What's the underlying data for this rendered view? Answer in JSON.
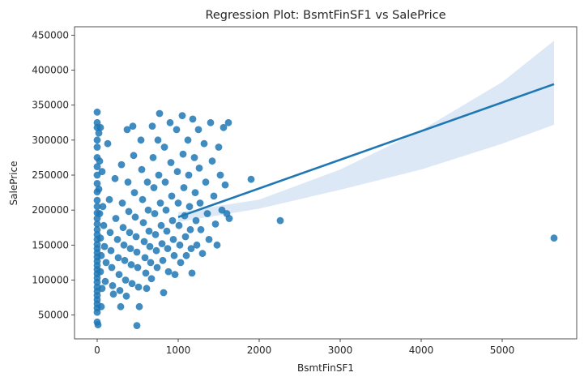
{
  "chart_data": {
    "type": "scatter",
    "title": "Regression Plot: BsmtFinSF1 vs SalePrice",
    "xlabel": "BsmtFinSF1",
    "ylabel": "SalePrice",
    "xlim": [
      -280,
      5920
    ],
    "ylim": [
      16000,
      462000
    ],
    "x_ticks": [
      0,
      1000,
      2000,
      3000,
      4000,
      5000
    ],
    "y_ticks": [
      50000,
      100000,
      150000,
      200000,
      250000,
      300000,
      350000,
      400000,
      450000
    ],
    "grid": false,
    "legend": "none",
    "point_color": "#1f77b4",
    "band_color": "#c9dbef",
    "regression": {
      "line": [
        [
          1000,
          190000
        ],
        [
          5640,
          380000
        ]
      ],
      "band_lower": [
        [
          1000,
          183000
        ],
        [
          2000,
          202000
        ],
        [
          3000,
          229000
        ],
        [
          4000,
          258000
        ],
        [
          5000,
          295000
        ],
        [
          5640,
          322000
        ]
      ],
      "band_upper": [
        [
          1000,
          197000
        ],
        [
          2000,
          215000
        ],
        [
          3000,
          258000
        ],
        [
          4000,
          314000
        ],
        [
          5000,
          383000
        ],
        [
          5640,
          442000
        ]
      ]
    },
    "points": [
      [
        0,
        340000
      ],
      [
        0,
        325000
      ],
      [
        0,
        318000
      ],
      [
        0,
        300000
      ],
      [
        0,
        290000
      ],
      [
        0,
        275000
      ],
      [
        0,
        262000
      ],
      [
        0,
        250000
      ],
      [
        0,
        238000
      ],
      [
        0,
        226000
      ],
      [
        0,
        214000
      ],
      [
        0,
        205000
      ],
      [
        0,
        196000
      ],
      [
        0,
        188000
      ],
      [
        0,
        180000
      ],
      [
        0,
        172000
      ],
      [
        0,
        165000
      ],
      [
        0,
        158000
      ],
      [
        0,
        151000
      ],
      [
        0,
        145000
      ],
      [
        0,
        139000
      ],
      [
        0,
        133000
      ],
      [
        0,
        127000
      ],
      [
        0,
        121000
      ],
      [
        0,
        115000
      ],
      [
        0,
        109000
      ],
      [
        0,
        103000
      ],
      [
        0,
        97000
      ],
      [
        0,
        90000
      ],
      [
        0,
        84000
      ],
      [
        0,
        78000
      ],
      [
        0,
        72000
      ],
      [
        0,
        66000
      ],
      [
        0,
        60000
      ],
      [
        0,
        54000
      ],
      [
        0,
        40000
      ],
      [
        10,
        36000
      ],
      [
        20,
        310000
      ],
      [
        30,
        270000
      ],
      [
        20,
        230000
      ],
      [
        30,
        195000
      ],
      [
        40,
        160000
      ],
      [
        50,
        135000
      ],
      [
        40,
        112000
      ],
      [
        60,
        88000
      ],
      [
        50,
        62000
      ],
      [
        40,
        318000
      ],
      [
        60,
        255000
      ],
      [
        70,
        205000
      ],
      [
        80,
        178000
      ],
      [
        90,
        148000
      ],
      [
        110,
        125000
      ],
      [
        100,
        98000
      ],
      [
        130,
        295000
      ],
      [
        150,
        215000
      ],
      [
        160,
        168000
      ],
      [
        170,
        142000
      ],
      [
        180,
        118000
      ],
      [
        190,
        92000
      ],
      [
        200,
        80000
      ],
      [
        220,
        245000
      ],
      [
        230,
        188000
      ],
      [
        250,
        158000
      ],
      [
        260,
        132000
      ],
      [
        270,
        108000
      ],
      [
        280,
        85000
      ],
      [
        290,
        62000
      ],
      [
        300,
        265000
      ],
      [
        310,
        210000
      ],
      [
        320,
        175000
      ],
      [
        330,
        150000
      ],
      [
        340,
        128000
      ],
      [
        350,
        100000
      ],
      [
        360,
        77000
      ],
      [
        370,
        315000
      ],
      [
        380,
        240000
      ],
      [
        390,
        198000
      ],
      [
        400,
        168000
      ],
      [
        410,
        145000
      ],
      [
        420,
        122000
      ],
      [
        430,
        95000
      ],
      [
        440,
        320000
      ],
      [
        450,
        278000
      ],
      [
        460,
        225000
      ],
      [
        470,
        190000
      ],
      [
        480,
        162000
      ],
      [
        490,
        140000
      ],
      [
        500,
        118000
      ],
      [
        510,
        90000
      ],
      [
        520,
        62000
      ],
      [
        490,
        35000
      ],
      [
        540,
        300000
      ],
      [
        550,
        258000
      ],
      [
        560,
        215000
      ],
      [
        570,
        182000
      ],
      [
        580,
        155000
      ],
      [
        590,
        132000
      ],
      [
        600,
        110000
      ],
      [
        610,
        88000
      ],
      [
        620,
        240000
      ],
      [
        630,
        200000
      ],
      [
        640,
        170000
      ],
      [
        650,
        148000
      ],
      [
        660,
        125000
      ],
      [
        670,
        102000
      ],
      [
        680,
        320000
      ],
      [
        690,
        275000
      ],
      [
        700,
        232000
      ],
      [
        710,
        195000
      ],
      [
        720,
        165000
      ],
      [
        730,
        142000
      ],
      [
        740,
        118000
      ],
      [
        750,
        300000
      ],
      [
        760,
        250000
      ],
      [
        770,
        338000
      ],
      [
        780,
        210000
      ],
      [
        790,
        178000
      ],
      [
        800,
        152000
      ],
      [
        810,
        128000
      ],
      [
        820,
        82000
      ],
      [
        830,
        290000
      ],
      [
        840,
        240000
      ],
      [
        850,
        200000
      ],
      [
        860,
        170000
      ],
      [
        870,
        145000
      ],
      [
        880,
        112000
      ],
      [
        900,
        325000
      ],
      [
        910,
        268000
      ],
      [
        920,
        220000
      ],
      [
        930,
        185000
      ],
      [
        940,
        158000
      ],
      [
        950,
        135000
      ],
      [
        960,
        108000
      ],
      [
        980,
        315000
      ],
      [
        990,
        255000
      ],
      [
        1000,
        210000
      ],
      [
        1010,
        178000
      ],
      [
        1020,
        150000
      ],
      [
        1030,
        125000
      ],
      [
        1050,
        335000
      ],
      [
        1060,
        280000
      ],
      [
        1070,
        232000
      ],
      [
        1080,
        192000
      ],
      [
        1090,
        162000
      ],
      [
        1100,
        135000
      ],
      [
        1120,
        300000
      ],
      [
        1130,
        250000
      ],
      [
        1140,
        205000
      ],
      [
        1150,
        172000
      ],
      [
        1160,
        145000
      ],
      [
        1170,
        110000
      ],
      [
        1180,
        330000
      ],
      [
        1200,
        275000
      ],
      [
        1210,
        225000
      ],
      [
        1220,
        185000
      ],
      [
        1230,
        150000
      ],
      [
        1250,
        315000
      ],
      [
        1260,
        260000
      ],
      [
        1270,
        210000
      ],
      [
        1280,
        172000
      ],
      [
        1300,
        138000
      ],
      [
        1320,
        295000
      ],
      [
        1340,
        240000
      ],
      [
        1360,
        195000
      ],
      [
        1380,
        158000
      ],
      [
        1400,
        325000
      ],
      [
        1420,
        270000
      ],
      [
        1440,
        220000
      ],
      [
        1460,
        180000
      ],
      [
        1480,
        150000
      ],
      [
        1500,
        290000
      ],
      [
        1520,
        250000
      ],
      [
        1540,
        200000
      ],
      [
        1560,
        318000
      ],
      [
        1580,
        236000
      ],
      [
        1600,
        195000
      ],
      [
        1620,
        325000
      ],
      [
        1630,
        188000
      ],
      [
        1900,
        244000
      ],
      [
        2260,
        185000
      ],
      [
        5640,
        160000
      ]
    ]
  }
}
